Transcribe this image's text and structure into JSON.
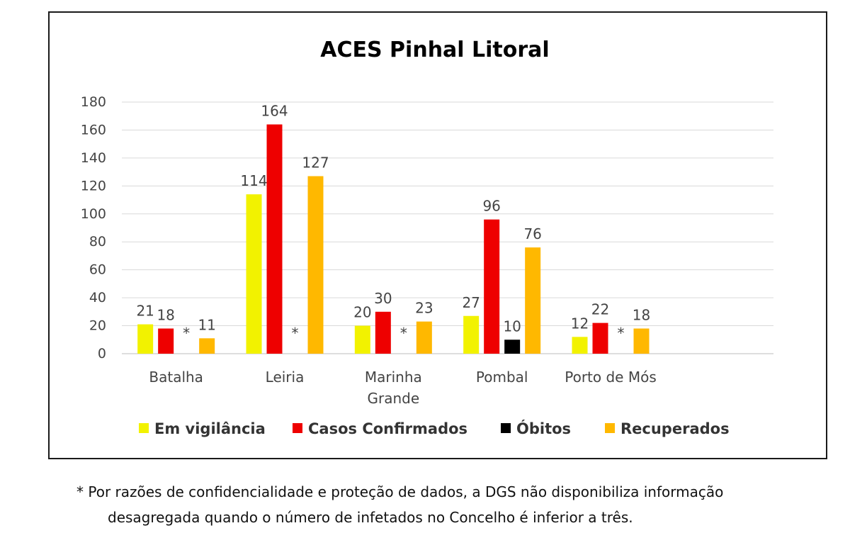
{
  "chart_data": {
    "type": "bar",
    "title": "ACES Pinhal Litoral",
    "categories": [
      [
        "Batalha"
      ],
      [
        "Leiria"
      ],
      [
        "Marinha",
        "Grande"
      ],
      [
        "Pombal"
      ],
      [
        "Porto de Mós"
      ]
    ],
    "series": [
      {
        "name": "Em vigilância",
        "color": "#f2f200",
        "values": [
          21,
          114,
          20,
          27,
          12
        ]
      },
      {
        "name": "Casos Confirmados",
        "color": "#ee0000",
        "values": [
          18,
          164,
          30,
          96,
          22
        ]
      },
      {
        "name": "Óbitos",
        "color": "#000000",
        "values": [
          null,
          null,
          null,
          10,
          null
        ]
      },
      {
        "name": "Recuperados",
        "color": "#ffb800",
        "values": [
          11,
          127,
          23,
          76,
          18
        ]
      }
    ],
    "suppressed_marker": "*",
    "ylim": [
      0,
      180
    ],
    "yticks": [
      0,
      20,
      40,
      60,
      80,
      100,
      120,
      140,
      160,
      180
    ],
    "grid": true,
    "legend_position": "bottom"
  },
  "footnote": {
    "line1": "* Por razões de confidencialidade e proteção de dados, a DGS não disponibiliza informação",
    "line2": "desagregada quando o número de infetados no Concelho é inferior a três."
  }
}
